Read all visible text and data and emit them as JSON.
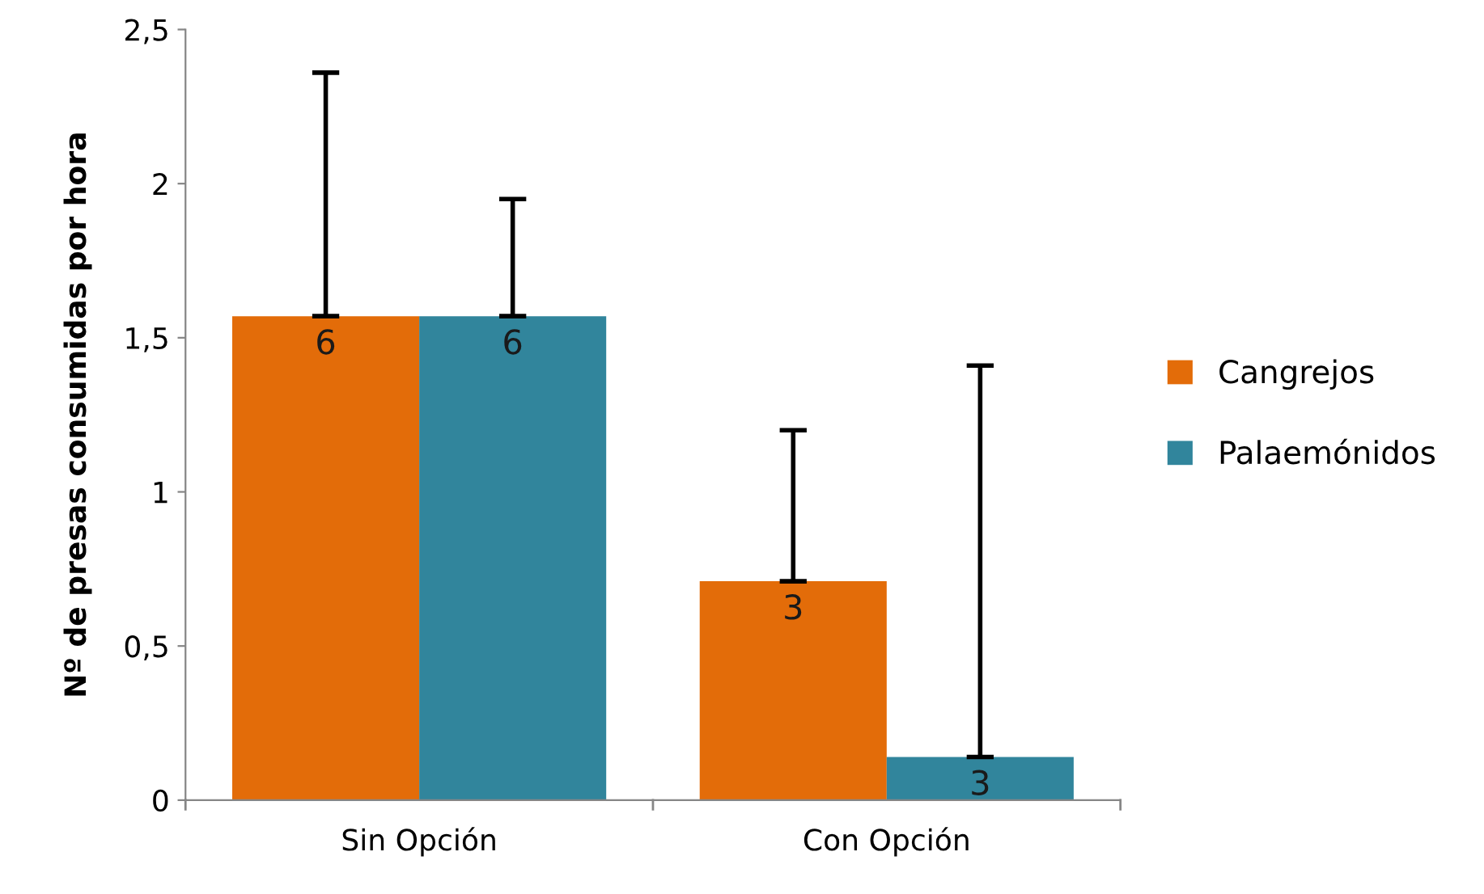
{
  "chart_data": {
    "type": "bar",
    "ylabel": "Nº de presas consumidas por hora",
    "categories": [
      "Sin Opción",
      "Con Opción"
    ],
    "series": [
      {
        "name": "Cangrejos",
        "color": "#e36c09",
        "values": [
          1.57,
          0.71
        ],
        "errors": [
          [
            1.57,
            2.36
          ],
          [
            0.71,
            1.2
          ]
        ]
      },
      {
        "name": "Palaemónidos",
        "color": "#31859c",
        "values": [
          1.57,
          0.14
        ],
        "errors": [
          [
            1.57,
            1.95
          ],
          [
            0.14,
            1.41
          ]
        ]
      }
    ],
    "annotations": [
      {
        "text": "6",
        "x": "Sin Opción",
        "y": 1.57
      },
      {
        "text": "6",
        "x": "Sin Opción",
        "y": 1.57
      },
      {
        "text": "3",
        "x": "Con Opción",
        "y": 0.71
      },
      {
        "text": "3",
        "x": "Con Opción",
        "y": 0.14
      }
    ],
    "ylim": [
      0,
      2.5
    ],
    "yticks": [
      {
        "value": 0,
        "label": "0"
      },
      {
        "value": 0.5,
        "label": "0,5"
      },
      {
        "value": 1,
        "label": "1"
      },
      {
        "value": 1.5,
        "label": "1,5"
      },
      {
        "value": 2,
        "label": "2"
      },
      {
        "value": 2.5,
        "label": "2,5"
      }
    ],
    "grid": false,
    "legend": "right"
  }
}
